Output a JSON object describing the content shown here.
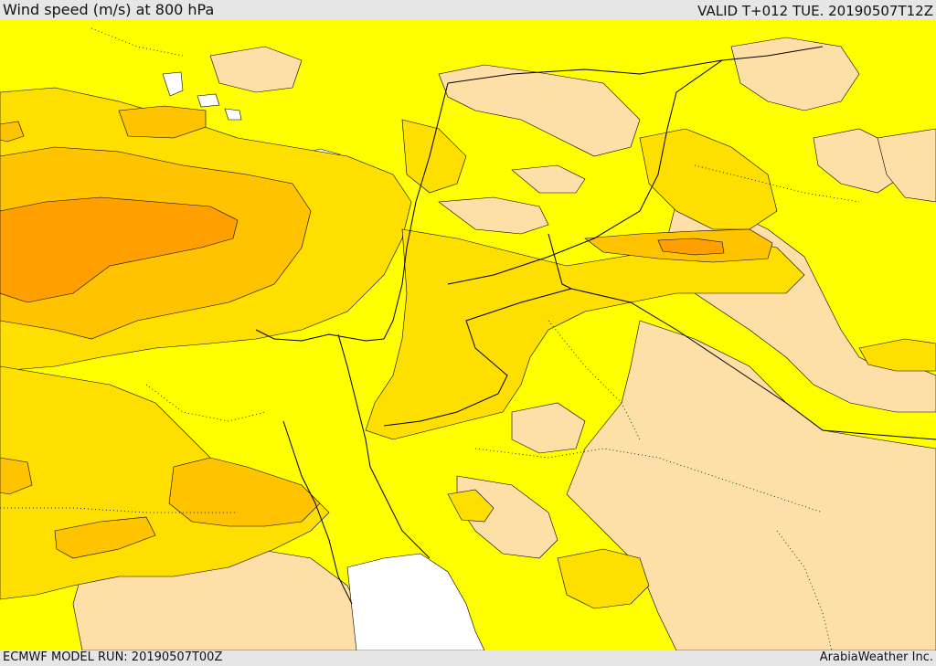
{
  "header": {
    "title": "Wind speed (m/s) at 800 hPa",
    "valid": "VALID T+012 TUE. 20190507T12Z"
  },
  "footer": {
    "model_run": "ECMWF MODEL RUN: 20190507T00Z",
    "credit": "ArabiaWeather Inc."
  },
  "map": {
    "field": "wind speed",
    "level": "800 hPa",
    "colors": {
      "background_light": "#ffff00",
      "moderate": "#ffdf00",
      "strong": "#ffc300",
      "strongest": "#ffa000",
      "calm_tan": "#ffdfa8",
      "calm_white": "#ffffff",
      "border_line": "#000000"
    }
  }
}
